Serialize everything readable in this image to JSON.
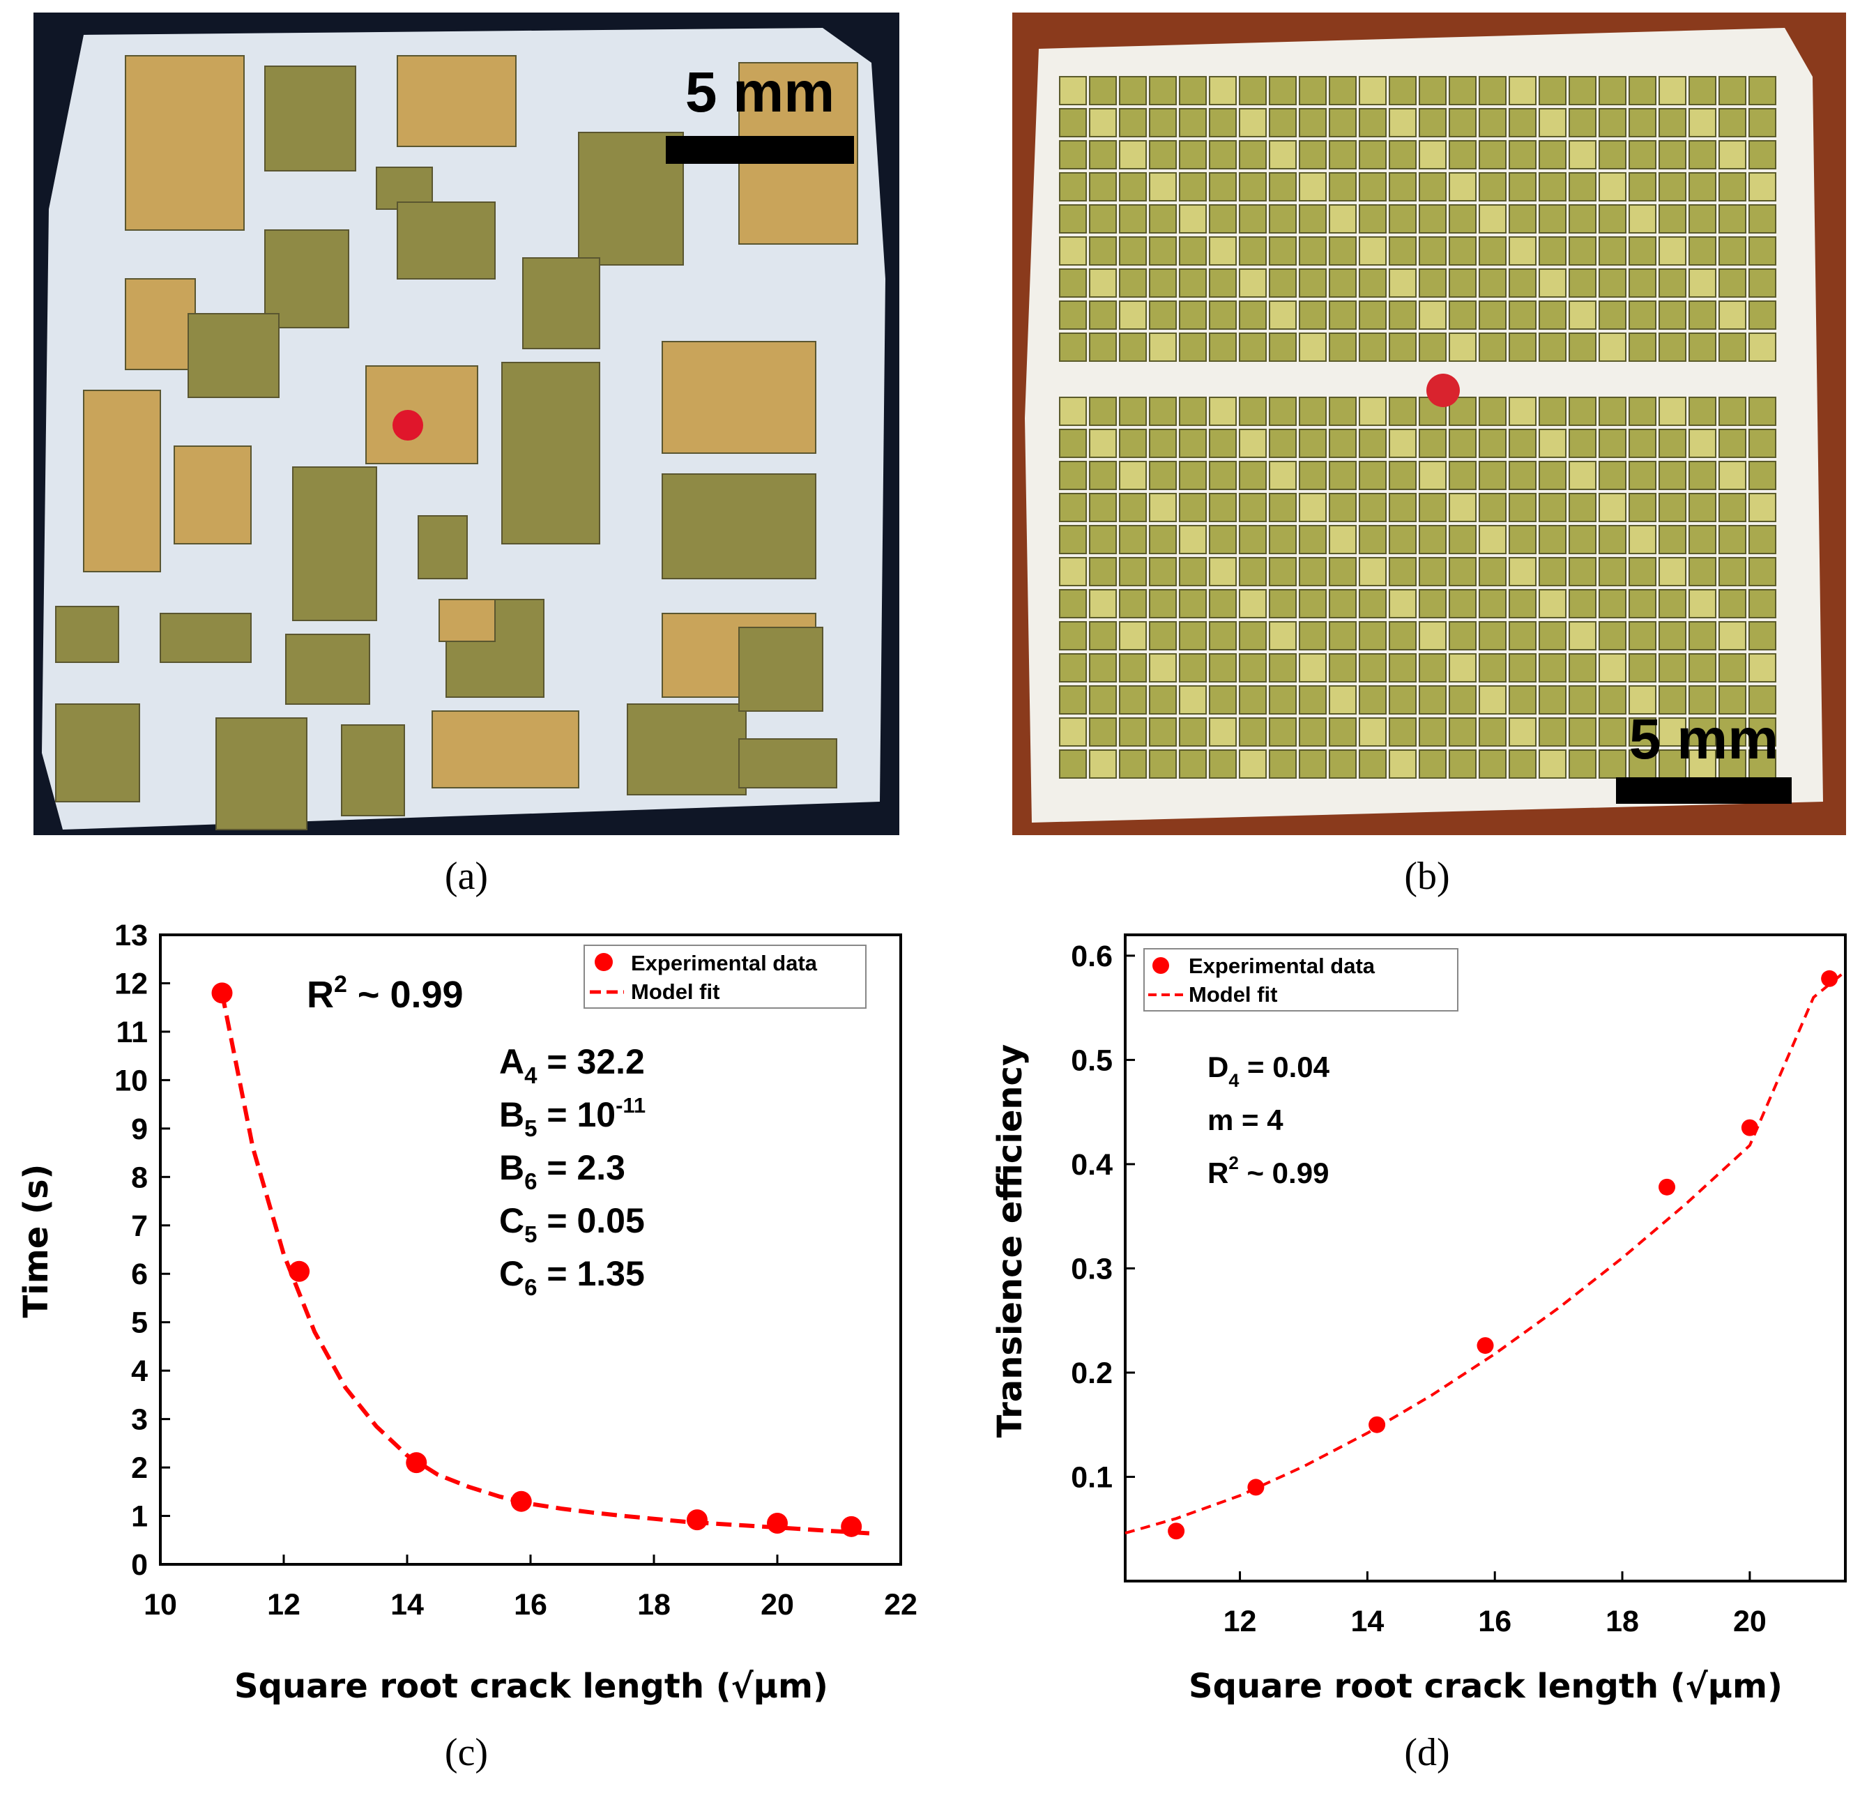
{
  "photos": [
    {
      "label": "(a)",
      "scale_bar": "5 mm",
      "colors": {
        "background": "#0f1626",
        "foam": "#dfe6ee",
        "chip": "#8f8a45",
        "chip_gold": "#c9a45a",
        "marker": "#e0162b"
      }
    },
    {
      "label": "(b)",
      "scale_bar": "5 mm",
      "colors": {
        "background": "#8a3a1c",
        "foam": "#f2f0ea",
        "chip": "#a9a94e",
        "chip_light": "#d3cf7a",
        "marker": "#d9232e"
      }
    }
  ],
  "chart_data": [
    {
      "type": "scatter",
      "panel_label": "(c)",
      "xlabel": "Square root crack length (√μm)",
      "ylabel": "Time (s)",
      "xlim": [
        10,
        22
      ],
      "ylim": [
        0,
        13
      ],
      "xticks": [
        10,
        12,
        14,
        16,
        18,
        20,
        22
      ],
      "yticks": [
        0,
        1,
        2,
        3,
        4,
        5,
        6,
        7,
        8,
        9,
        10,
        11,
        12,
        13
      ],
      "legend": {
        "placement": "top-right",
        "entries": [
          "Experimental data",
          "Model fit"
        ]
      },
      "series": [
        {
          "name": "Experimental data",
          "kind": "points",
          "x": [
            11.0,
            12.25,
            14.15,
            15.85,
            18.7,
            20.0,
            21.2
          ],
          "y": [
            11.8,
            6.05,
            2.1,
            1.3,
            0.92,
            0.85,
            0.78
          ]
        },
        {
          "name": "Model fit",
          "kind": "dashed-line",
          "x": [
            11.0,
            11.5,
            12.0,
            12.5,
            13.0,
            13.5,
            14.0,
            14.5,
            15.0,
            15.5,
            16.0,
            16.5,
            17.0,
            17.5,
            18.0,
            18.5,
            19.0,
            19.5,
            20.0,
            20.5,
            21.0,
            21.5
          ],
          "y": [
            11.8,
            8.6,
            6.4,
            4.8,
            3.65,
            2.85,
            2.25,
            1.85,
            1.6,
            1.4,
            1.25,
            1.15,
            1.07,
            1.0,
            0.94,
            0.88,
            0.84,
            0.8,
            0.76,
            0.72,
            0.68,
            0.64
          ]
        }
      ],
      "annotations": {
        "r2": {
          "text": "R",
          "sup": "2",
          "rest": " ~ 0.99"
        },
        "params": [
          {
            "sym": "A",
            "sub": "4",
            "sup": "",
            "val": " = 32.2"
          },
          {
            "sym": "B",
            "sub": "5",
            "sup": "-11",
            "val": " = 10"
          },
          {
            "sym": "B",
            "sub": "6",
            "sup": "",
            "val": " = 2.3"
          },
          {
            "sym": "C",
            "sub": "5",
            "sup": "",
            "val": " = 0.05"
          },
          {
            "sym": "C",
            "sub": "6",
            "sup": "",
            "val": " = 1.35"
          }
        ]
      },
      "colors": {
        "data": "#ff0000",
        "fit": "#ff0000",
        "axis": "#000000"
      }
    },
    {
      "type": "scatter",
      "panel_label": "(d)",
      "xlabel": "Square root crack length (√μm)",
      "ylabel": "Transience efficiency",
      "xlim": [
        10.2,
        21.5
      ],
      "ylim": [
        0.0,
        0.62
      ],
      "xticks": [
        12,
        14,
        16,
        18,
        20
      ],
      "yticks": [
        0.1,
        0.2,
        0.3,
        0.4,
        0.5,
        0.6
      ],
      "legend": {
        "placement": "top-left",
        "entries": [
          "Experimental data",
          "Model fit"
        ]
      },
      "series": [
        {
          "name": "Experimental data",
          "kind": "points",
          "x": [
            11.0,
            12.25,
            14.15,
            15.85,
            18.7,
            20.0,
            21.25
          ],
          "y": [
            0.048,
            0.09,
            0.15,
            0.226,
            0.378,
            0.435,
            0.578
          ]
        },
        {
          "name": "Model fit",
          "kind": "dashed-line",
          "x": [
            10.2,
            11.0,
            12.0,
            13.0,
            14.0,
            15.0,
            16.0,
            17.0,
            18.0,
            19.0,
            20.0,
            21.0,
            21.5
          ],
          "y": [
            0.046,
            0.06,
            0.082,
            0.11,
            0.142,
            0.178,
            0.218,
            0.262,
            0.31,
            0.362,
            0.418,
            0.56,
            0.585
          ]
        }
      ],
      "annotations": {
        "lines": [
          {
            "sym": "D",
            "sub": "4",
            "sup": "",
            "val": " = 0.04"
          },
          {
            "sym": "m",
            "sub": "",
            "sup": "",
            "val": " = 4"
          },
          {
            "sym": "R",
            "sub": "",
            "sup": "2",
            "val": " ~ 0.99"
          }
        ]
      },
      "colors": {
        "data": "#ff0000",
        "fit": "#ff0000",
        "axis": "#000000"
      }
    }
  ]
}
